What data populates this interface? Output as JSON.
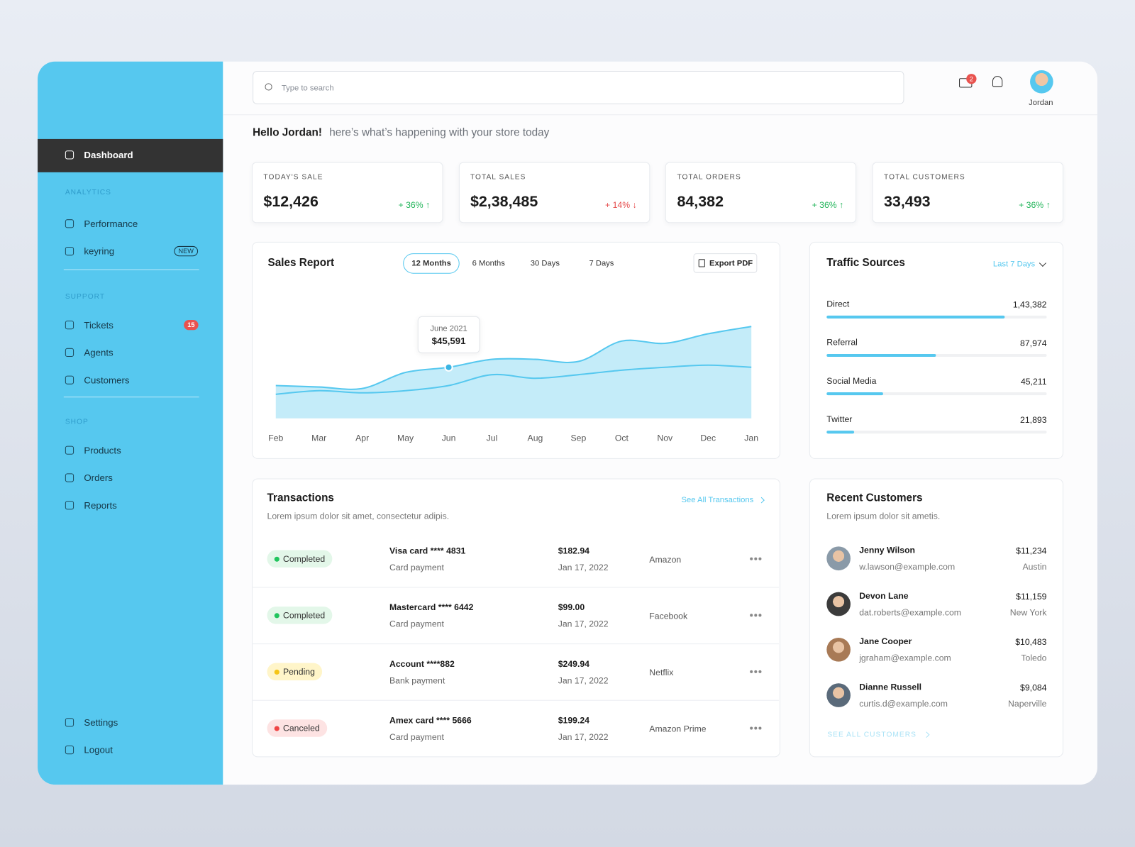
{
  "sidebar": {
    "active": "Dashboard",
    "analytics_title": "ANALYTICS",
    "analytics": [
      {
        "label": "Performance"
      },
      {
        "label": "keyring",
        "badge": "NEW"
      }
    ],
    "support_title": "SUPPORT",
    "support": [
      {
        "label": "Tickets",
        "badge": "15"
      },
      {
        "label": "Agents"
      },
      {
        "label": "Customers"
      }
    ],
    "shop_title": "SHOP",
    "shop": [
      {
        "label": "Products"
      },
      {
        "label": "Orders"
      },
      {
        "label": "Reports"
      }
    ],
    "bottom": [
      {
        "label": "Settings"
      },
      {
        "label": "Logout"
      }
    ]
  },
  "header": {
    "search_placeholder": "Type to search",
    "mail_badge": "2",
    "user": "Jordan"
  },
  "greeting": {
    "hello": "Hello Jordan!",
    "text": "here’s what’s happening with your store today"
  },
  "stats": [
    {
      "label": "TODAY'S SALE",
      "value": "$12,426",
      "change": "+ 36% ↑",
      "color": "#22b55a"
    },
    {
      "label": "TOTAL SALES",
      "value": "$2,38,485",
      "change": "+ 14% ↓",
      "color": "#e54b4b"
    },
    {
      "label": "TOTAL ORDERS",
      "value": "84,382",
      "change": "+ 36% ↑",
      "color": "#22b55a"
    },
    {
      "label": "TOTAL CUSTOMERS",
      "value": "33,493",
      "change": "+ 36% ↑",
      "color": "#22b55a"
    }
  ],
  "sales_report": {
    "filters": [
      "12 Months",
      "6 Months",
      "30 Days",
      "7 Days"
    ],
    "active_filter": 0,
    "export": "Export PDF",
    "tooltip": {
      "title": "June 2021",
      "text": "$45,591",
      "category": 4
    }
  },
  "traffic_sources": {
    "period": "Last 7 Days"
  },
  "chart_data": [
    {
      "type": "area",
      "title": "Sales Report",
      "categories": [
        "Feb",
        "Mar",
        "Apr",
        "May",
        "Jun",
        "Jul",
        "Aug",
        "Sep",
        "Oct",
        "Nov",
        "Dec",
        "Jan"
      ],
      "series": [
        {
          "color": "#56c8ef",
          "values": [
            29300,
            28000,
            26700,
            41000,
            45591,
            52700,
            52700,
            50800,
            69000,
            67000,
            75500,
            82000
          ]
        },
        {
          "color": "#56c8ef",
          "values": [
            21500,
            24700,
            22800,
            24700,
            29300,
            39000,
            35800,
            39000,
            43000,
            45600,
            47500,
            45600
          ]
        }
      ],
      "ylim": [
        0,
        115000
      ]
    },
    {
      "type": "bar",
      "title": "Traffic Sources",
      "categories": [
        "Direct",
        "Referral",
        "Social Media",
        "Twitter"
      ],
      "values": [
        143382,
        87974,
        45211,
        21893
      ],
      "value_labels": [
        "1,43,382",
        "87,974",
        "45,211",
        "21,893"
      ],
      "xlim": [
        0,
        177000
      ],
      "color": "#56c8ef"
    }
  ],
  "transactions": {
    "title": "Transactions",
    "subtitle": "Lorem ipsum dolor sit amet, consectetur adipis.",
    "link": "See All Transactions",
    "rows": [
      {
        "status": "Completed",
        "status_color": "#22c55e",
        "status_bg": "#e3f7e9",
        "method": "Visa card **** 4831",
        "type": "Card payment",
        "amount": "$182.94",
        "date": "Jan 17, 2022",
        "merchant": "Amazon"
      },
      {
        "status": "Completed",
        "status_color": "#22c55e",
        "status_bg": "#e3f7e9",
        "method": "Mastercard **** 6442",
        "type": "Card payment",
        "amount": "$99.00",
        "date": "Jan 17, 2022",
        "merchant": "Facebook"
      },
      {
        "status": "Pending",
        "status_color": "#f5c518",
        "status_bg": "#fff5c9",
        "method": "Account ****882",
        "type": "Bank payment",
        "amount": "$249.94",
        "date": "Jan 17, 2022",
        "merchant": "Netflix"
      },
      {
        "status": "Canceled",
        "status_color": "#ef4444",
        "status_bg": "#fde3e3",
        "method": "Amex card **** 5666",
        "type": "Card payment",
        "amount": "$199.24",
        "date": "Jan 17, 2022",
        "merchant": "Amazon Prime"
      }
    ]
  },
  "recent_customers": {
    "title": "Recent Customers",
    "subtitle": "Lorem ipsum dolor sit ametis.",
    "link": "SEE ALL CUSTOMERS",
    "rows": [
      {
        "name": "Jenny Wilson",
        "email": "w.lawson@example.com",
        "amount": "$11,234",
        "city": "Austin"
      },
      {
        "name": "Devon Lane",
        "email": "dat.roberts@example.com",
        "amount": "$11,159",
        "city": "New York"
      },
      {
        "name": "Jane Cooper",
        "email": "jgraham@example.com",
        "amount": "$10,483",
        "city": "Toledo"
      },
      {
        "name": "Dianne Russell",
        "email": "curtis.d@example.com",
        "amount": "$9,084",
        "city": "Naperville"
      }
    ]
  }
}
